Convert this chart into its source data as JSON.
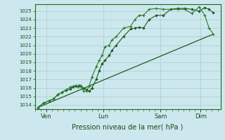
{
  "title": "Pression niveau de la mer( hPa )",
  "bg_color": "#cce8ee",
  "grid_color": "#aacccc",
  "line_color_dark": "#1a5c1a",
  "line_color_mid": "#2d7a2d",
  "ylim": [
    1013.5,
    1025.8
  ],
  "yticks": [
    1014,
    1015,
    1016,
    1017,
    1018,
    1019,
    1020,
    1021,
    1022,
    1023,
    1024,
    1025
  ],
  "xtick_labels": [
    "Ven",
    "Lun",
    "Sam",
    "Dim"
  ],
  "xtick_positions": [
    8,
    48,
    88,
    116
  ],
  "xlim": [
    0,
    130
  ],
  "series1_x": [
    2,
    6,
    10,
    13,
    16,
    19,
    22,
    25,
    27,
    29,
    30,
    31,
    32,
    34,
    36,
    38,
    40,
    43,
    45,
    47,
    49,
    52,
    54,
    57,
    62,
    67,
    70,
    73,
    76,
    80,
    85,
    90,
    95,
    100,
    105,
    110,
    115,
    119,
    122,
    125
  ],
  "series1_y": [
    1013.7,
    1014.2,
    1014.5,
    1014.7,
    1015.2,
    1015.5,
    1015.7,
    1015.9,
    1016.1,
    1016.2,
    1016.2,
    1016.3,
    1016.2,
    1016.0,
    1015.8,
    1015.6,
    1016.0,
    1017.0,
    1018.0,
    1018.8,
    1019.2,
    1019.8,
    1020.4,
    1021.0,
    1022.0,
    1022.9,
    1023.0,
    1023.1,
    1023.0,
    1024.0,
    1024.5,
    1024.5,
    1025.2,
    1025.3,
    1025.3,
    1025.2,
    1025.0,
    1025.4,
    1025.2,
    1024.8
  ],
  "series2_x": [
    2,
    6,
    10,
    13,
    16,
    19,
    22,
    25,
    27,
    29,
    30,
    31,
    32,
    34,
    36,
    38,
    40,
    43,
    45,
    47,
    49,
    52,
    54,
    57,
    62,
    67,
    70,
    73,
    76,
    80,
    85,
    90,
    95,
    100,
    105,
    110,
    115,
    119,
    122,
    125
  ],
  "series2_y": [
    1013.7,
    1014.2,
    1014.5,
    1014.7,
    1015.2,
    1015.5,
    1015.8,
    1016.1,
    1016.2,
    1016.3,
    1016.1,
    1016.3,
    1016.2,
    1015.6,
    1015.6,
    1016.2,
    1017.3,
    1018.5,
    1019.2,
    1019.8,
    1020.8,
    1021.0,
    1021.6,
    1022.0,
    1023.0,
    1023.2,
    1024.0,
    1024.5,
    1024.5,
    1025.2,
    1025.3,
    1025.2,
    1025.2,
    1025.2,
    1025.2,
    1024.7,
    1025.5,
    1024.5,
    1023.0,
    1022.3
  ],
  "series3_x": [
    2,
    125
  ],
  "series3_y": [
    1013.7,
    1022.3
  ]
}
